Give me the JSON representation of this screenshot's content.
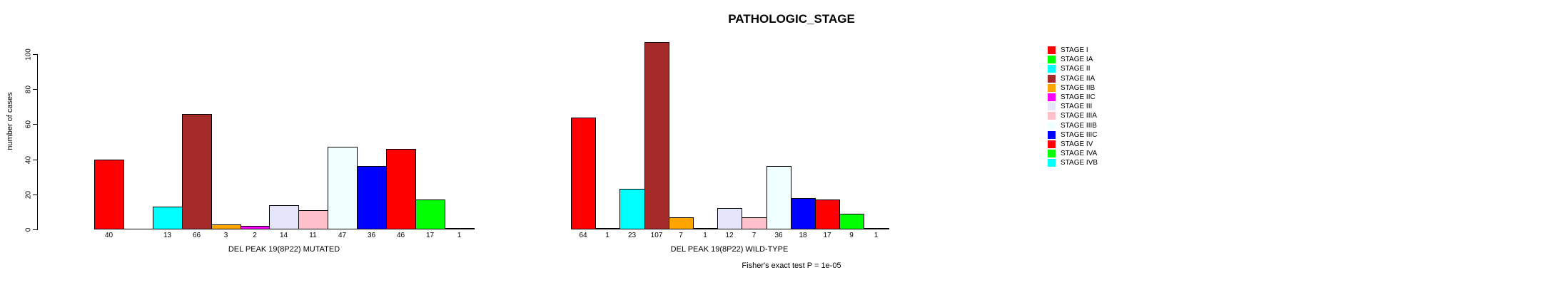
{
  "figure": {
    "title": "PATHOLOGIC_STAGE",
    "annotation": "Fisher's exact test P = 1e-05"
  },
  "chart_data": {
    "type": "bar",
    "title": "PATHOLOGIC_STAGE",
    "xlabel": "",
    "ylabel": "number of cases",
    "ylim": [
      0,
      100
    ],
    "yticks": [
      0,
      20,
      40,
      60,
      80,
      100
    ],
    "grid": false,
    "legend_position": "right",
    "categories": [
      "STAGE I",
      "STAGE IA",
      "STAGE II",
      "STAGE IIA",
      "STAGE IIB",
      "STAGE IIC",
      "STAGE III",
      "STAGE IIIA",
      "STAGE IIIB",
      "STAGE IIIC",
      "STAGE IV",
      "STAGE IVA",
      "STAGE IVB"
    ],
    "palette": [
      "#FF0000",
      "#00FF00",
      "#00FFFF",
      "#A52A2A",
      "#FFA500",
      "#FF00FF",
      "#E6E6FA",
      "#FFC0CB",
      "#F0FFFF",
      "#0000FF",
      "#FF0000",
      "#00FF00",
      "#00FFFF"
    ],
    "series": [
      {
        "name": "DEL PEAK 19(8P22) MUTATED",
        "values": [
          40,
          0,
          13,
          66,
          3,
          2,
          14,
          11,
          47,
          36,
          46,
          17,
          1
        ],
        "bar_labels": [
          "40",
          "",
          "13",
          "66",
          "3",
          "2",
          "14",
          "11",
          "47",
          "36",
          "46",
          "17",
          "1"
        ]
      },
      {
        "name": "DEL PEAK 19(8P22) WILD-TYPE",
        "values": [
          64,
          1,
          23,
          107,
          7,
          1,
          12,
          7,
          36,
          18,
          17,
          9,
          1
        ],
        "bar_labels": [
          "64",
          "1",
          "23",
          "107",
          "7",
          "1",
          "12",
          "7",
          "36",
          "18",
          "17",
          "9",
          "1"
        ]
      }
    ],
    "annotation": "Fisher's exact test P = 1e-05"
  }
}
